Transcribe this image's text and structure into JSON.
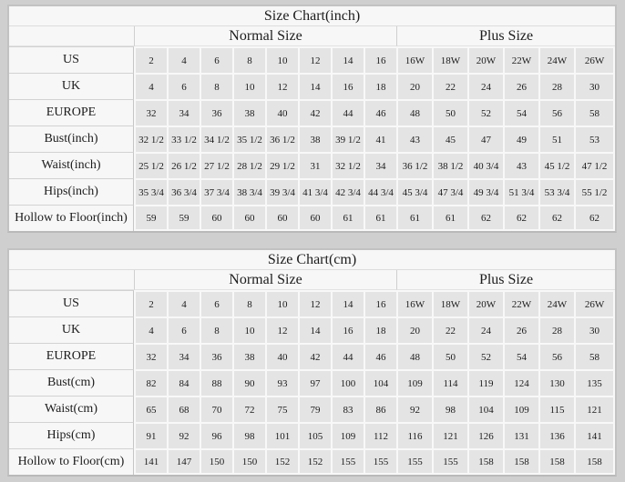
{
  "colors": {
    "page_bg": "#cfcfcf",
    "table_bg": "#f7f7f7",
    "cell_bg": "#e4e4e4",
    "gridline": "#f8f8f8",
    "label_divider": "#d2d2d2",
    "outer_border": "#c2c2c2",
    "text": "#1c1c1c"
  },
  "chart_data": {
    "type": "table",
    "note": "Two garment size-conversion tables: inches and centimeters"
  },
  "tables": [
    {
      "title": "Size Chart(inch)",
      "group_headers": [
        "Normal Size",
        "Plus Size"
      ],
      "rows": [
        {
          "label": "US",
          "normal": [
            "2",
            "4",
            "6",
            "8",
            "10",
            "12",
            "14",
            "16"
          ],
          "plus": [
            "16W",
            "18W",
            "20W",
            "22W",
            "24W",
            "26W"
          ]
        },
        {
          "label": "UK",
          "normal": [
            "4",
            "6",
            "8",
            "10",
            "12",
            "14",
            "16",
            "18"
          ],
          "plus": [
            "20",
            "22",
            "24",
            "26",
            "28",
            "30"
          ]
        },
        {
          "label": "EUROPE",
          "normal": [
            "32",
            "34",
            "36",
            "38",
            "40",
            "42",
            "44",
            "46"
          ],
          "plus": [
            "48",
            "50",
            "52",
            "54",
            "56",
            "58"
          ]
        },
        {
          "label": "Bust(inch)",
          "normal": [
            "32 1/2",
            "33 1/2",
            "34 1/2",
            "35 1/2",
            "36 1/2",
            "38",
            "39 1/2",
            "41"
          ],
          "plus": [
            "43",
            "45",
            "47",
            "49",
            "51",
            "53"
          ]
        },
        {
          "label": "Waist(inch)",
          "normal": [
            "25 1/2",
            "26 1/2",
            "27 1/2",
            "28 1/2",
            "29 1/2",
            "31",
            "32 1/2",
            "34"
          ],
          "plus": [
            "36 1/2",
            "38 1/2",
            "40 3/4",
            "43",
            "45 1/2",
            "47 1/2"
          ]
        },
        {
          "label": "Hips(inch)",
          "normal": [
            "35 3/4",
            "36 3/4",
            "37 3/4",
            "38 3/4",
            "39 3/4",
            "41 3/4",
            "42 3/4",
            "44 3/4"
          ],
          "plus": [
            "45 3/4",
            "47 3/4",
            "49 3/4",
            "51 3/4",
            "53 3/4",
            "55 1/2"
          ]
        },
        {
          "label": "Hollow to Floor(inch)",
          "normal": [
            "59",
            "59",
            "60",
            "60",
            "60",
            "60",
            "61",
            "61"
          ],
          "plus": [
            "61",
            "61",
            "62",
            "62",
            "62",
            "62"
          ]
        }
      ]
    },
    {
      "title": "Size Chart(cm)",
      "group_headers": [
        "Normal Size",
        "Plus Size"
      ],
      "rows": [
        {
          "label": "US",
          "normal": [
            "2",
            "4",
            "6",
            "8",
            "10",
            "12",
            "14",
            "16"
          ],
          "plus": [
            "16W",
            "18W",
            "20W",
            "22W",
            "24W",
            "26W"
          ]
        },
        {
          "label": "UK",
          "normal": [
            "4",
            "6",
            "8",
            "10",
            "12",
            "14",
            "16",
            "18"
          ],
          "plus": [
            "20",
            "22",
            "24",
            "26",
            "28",
            "30"
          ]
        },
        {
          "label": "EUROPE",
          "normal": [
            "32",
            "34",
            "36",
            "38",
            "40",
            "42",
            "44",
            "46"
          ],
          "plus": [
            "48",
            "50",
            "52",
            "54",
            "56",
            "58"
          ]
        },
        {
          "label": "Bust(cm)",
          "normal": [
            "82",
            "84",
            "88",
            "90",
            "93",
            "97",
            "100",
            "104"
          ],
          "plus": [
            "109",
            "114",
            "119",
            "124",
            "130",
            "135"
          ]
        },
        {
          "label": "Waist(cm)",
          "normal": [
            "65",
            "68",
            "70",
            "72",
            "75",
            "79",
            "83",
            "86"
          ],
          "plus": [
            "92",
            "98",
            "104",
            "109",
            "115",
            "121"
          ]
        },
        {
          "label": "Hips(cm)",
          "normal": [
            "91",
            "92",
            "96",
            "98",
            "101",
            "105",
            "109",
            "112"
          ],
          "plus": [
            "116",
            "121",
            "126",
            "131",
            "136",
            "141"
          ]
        },
        {
          "label": "Hollow to Floor(cm)",
          "normal": [
            "141",
            "147",
            "150",
            "150",
            "152",
            "152",
            "155",
            "155"
          ],
          "plus": [
            "155",
            "155",
            "158",
            "158",
            "158",
            "158"
          ]
        }
      ]
    }
  ]
}
